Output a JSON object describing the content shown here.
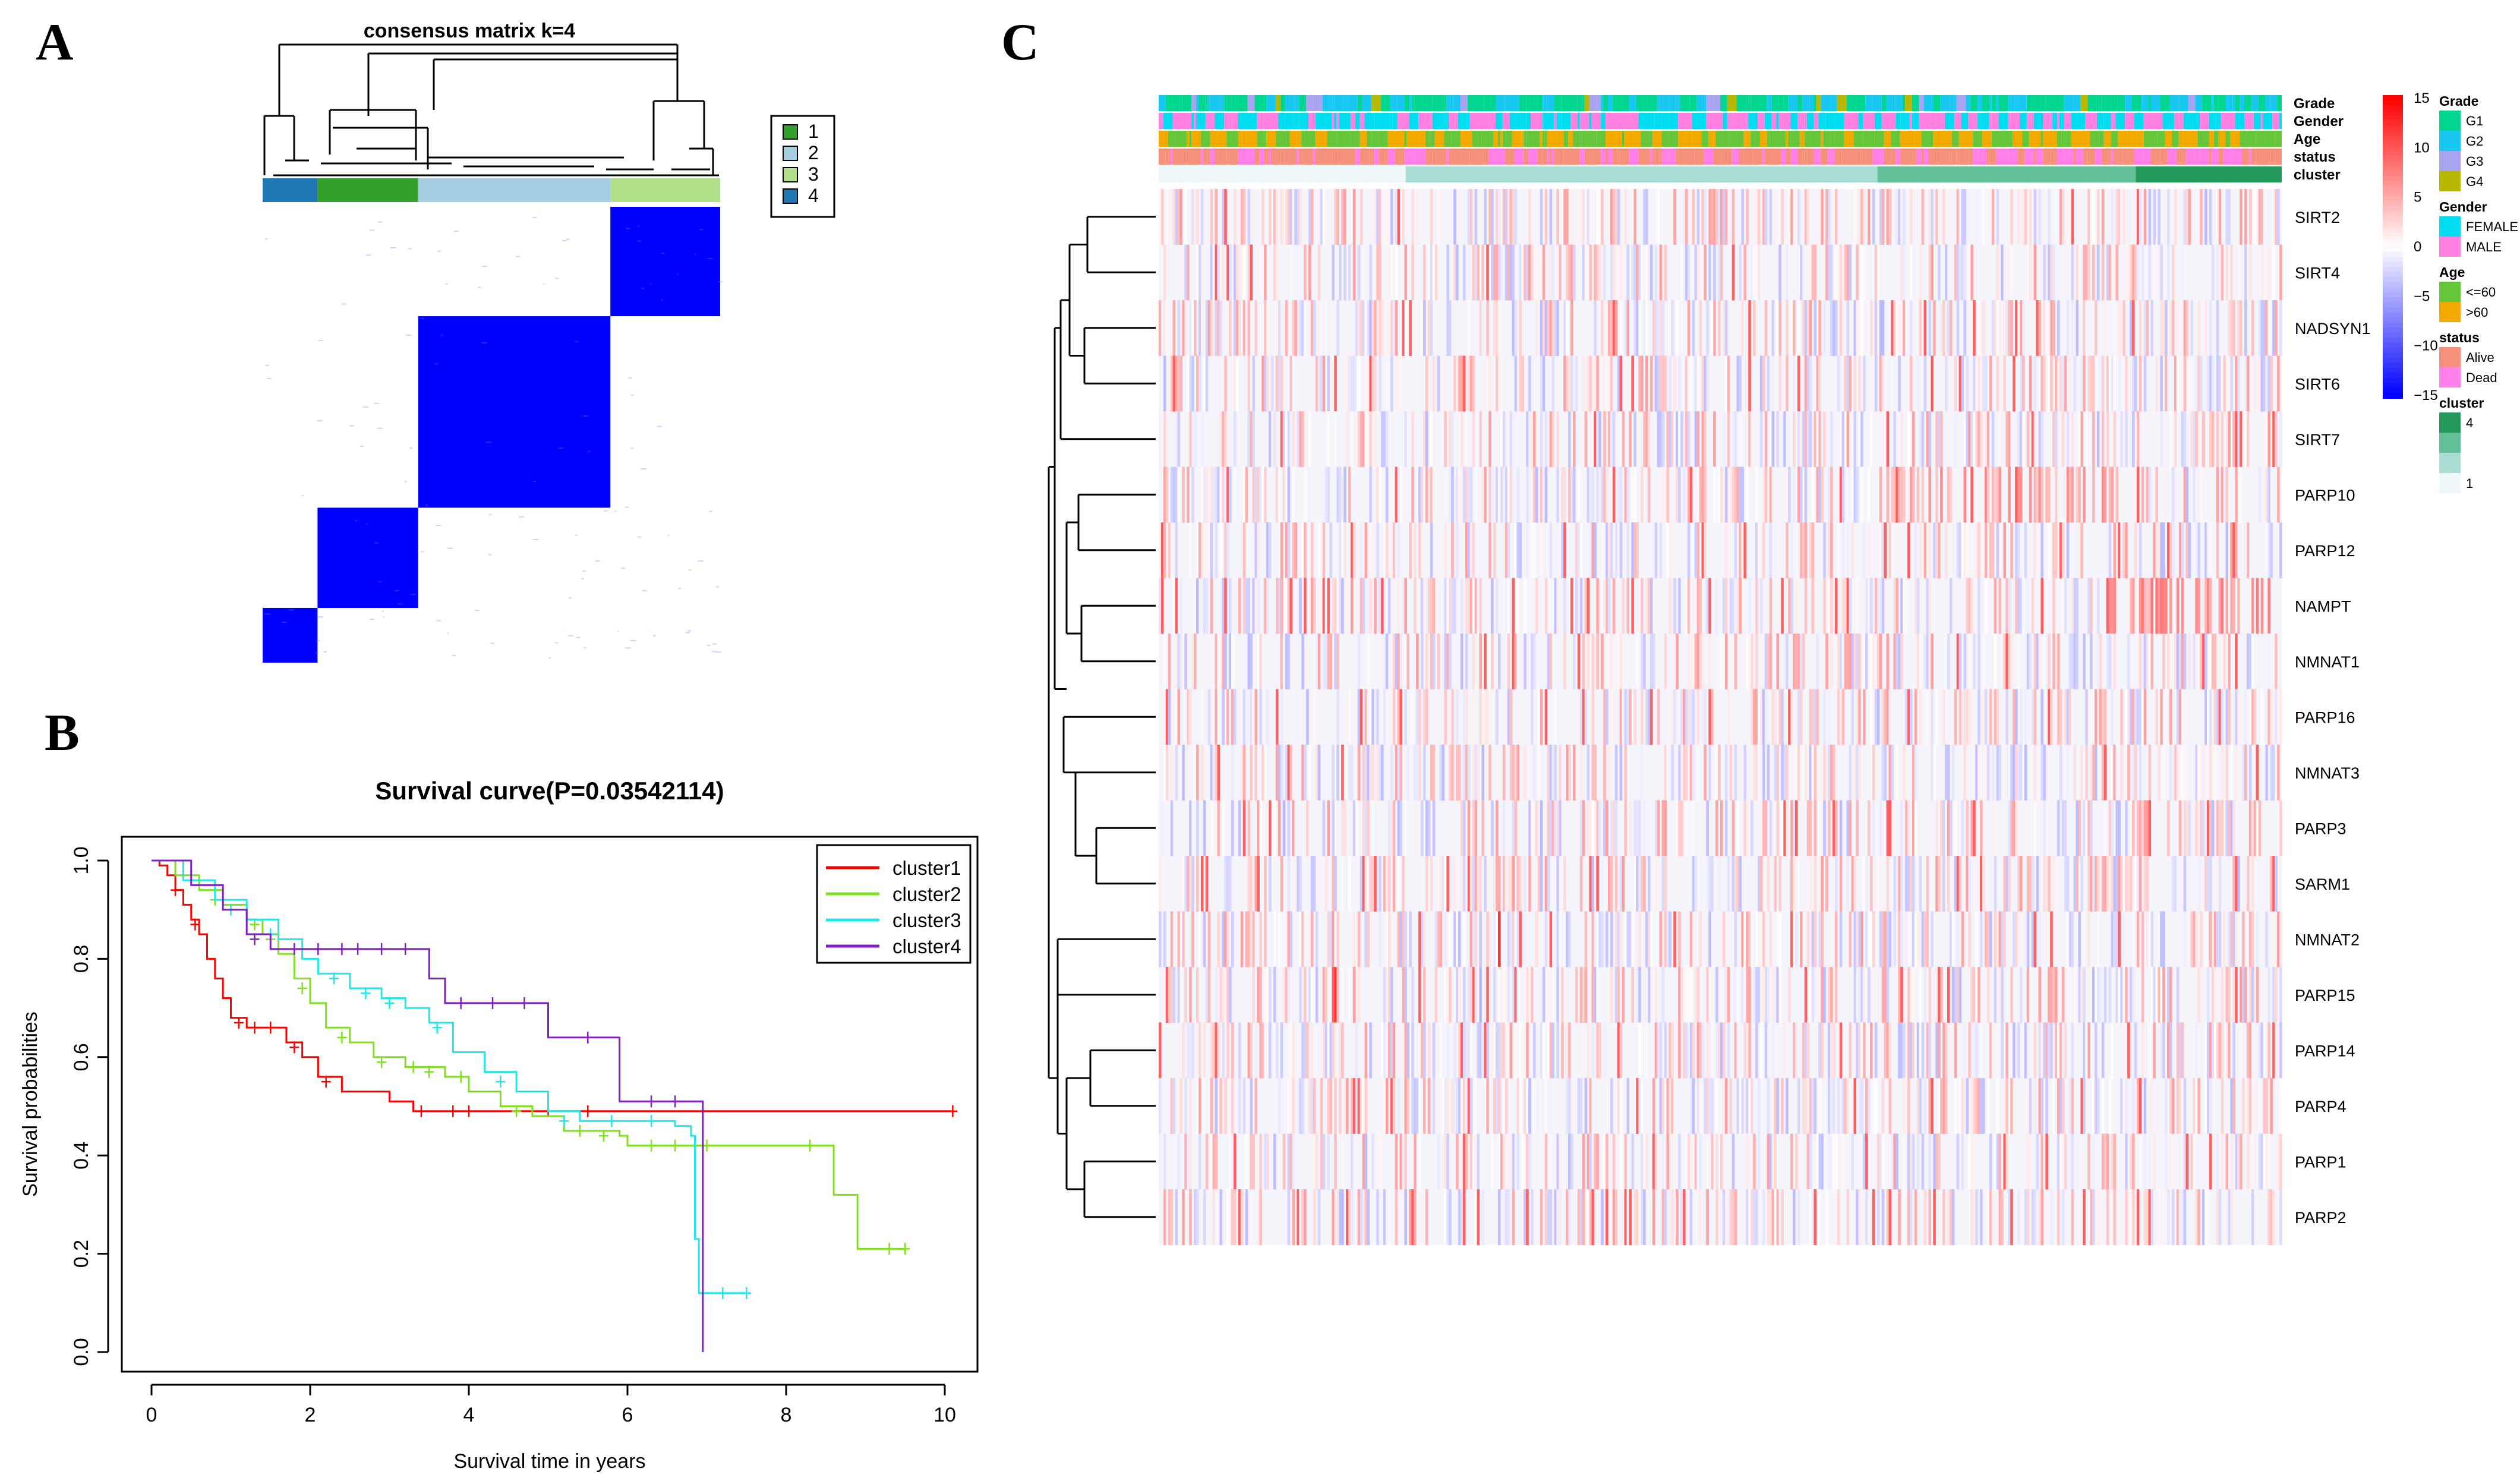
{
  "panels": {
    "A": {
      "letter": "A",
      "title": "consensus matrix k=4",
      "legend": [
        {
          "label": "1",
          "color": "#33a02c"
        },
        {
          "label": "2",
          "color": "#a6cee3"
        },
        {
          "label": "3",
          "color": "#b2df8a"
        },
        {
          "label": "4",
          "color": "#1f78b4"
        }
      ],
      "column_order": [
        "4",
        "1",
        "2",
        "3"
      ],
      "cluster_fraction": [
        0.12,
        0.22,
        0.42,
        0.24
      ],
      "block_color": "#0000ff"
    },
    "B": {
      "letter": "B",
      "title": "Survival curve(P=0.03542114)",
      "xlabel": "Survival time in years",
      "ylabel": "Survival probabilities"
    },
    "C": {
      "letter": "C",
      "annotation_rows": [
        "Grade",
        "Gender",
        "Age",
        "status",
        "cluster"
      ],
      "genes": [
        "SIRT2",
        "SIRT4",
        "NADSYN1",
        "SIRT6",
        "SIRT7",
        "PARP10",
        "PARP12",
        "NAMPT",
        "NMNAT1",
        "PARP16",
        "NMNAT3",
        "PARP3",
        "SARM1",
        "NMNAT2",
        "PARP15",
        "PARP14",
        "PARP4",
        "PARP1",
        "PARP2"
      ],
      "colorbar": {
        "ticks": [
          "15",
          "10",
          "5",
          "0",
          "−5",
          "−10",
          "−15"
        ],
        "high_color": "#ff0000",
        "mid_color": "#ffffff",
        "low_color": "#0000ff"
      },
      "legend_groups": [
        {
          "title": "Grade",
          "items": [
            {
              "label": "G1",
              "color": "#00d68f"
            },
            {
              "label": "G2",
              "color": "#18c8f0"
            },
            {
              "label": "G3",
              "color": "#a9a4f0"
            },
            {
              "label": "G4",
              "color": "#b8b800"
            }
          ]
        },
        {
          "title": "Gender",
          "items": [
            {
              "label": "FEMALE",
              "color": "#00dcf0"
            },
            {
              "label": "MALE",
              "color": "#ff80e0"
            }
          ]
        },
        {
          "title": "Age",
          "items": [
            {
              "label": "<=60",
              "color": "#66c63a"
            },
            {
              "label": ">60",
              "color": "#f2a900"
            }
          ]
        },
        {
          "title": "status",
          "items": [
            {
              "label": "Alive",
              "color": "#f4917b"
            },
            {
              "label": "Dead",
              "color": "#ff80e8"
            }
          ]
        },
        {
          "title": "cluster",
          "items": [
            {
              "label": "4",
              "color": "#24975a"
            },
            {
              "label": "",
              "color": "#62bf97"
            },
            {
              "label": "",
              "color": "#a9dcd2"
            },
            {
              "label": "1",
              "color": "#eef8fb"
            }
          ]
        }
      ]
    }
  },
  "chart_data": [
    {
      "type": "heatmap",
      "title": "consensus matrix k=4",
      "clusters": [
        "1",
        "2",
        "3",
        "4"
      ],
      "value_range": [
        0,
        1
      ]
    },
    {
      "type": "line",
      "title": "Survival curve(P=0.03542114)",
      "xlabel": "Survival time in years",
      "ylabel": "Survival probabilities",
      "xlim": [
        0,
        10
      ],
      "ylim": [
        0,
        1
      ],
      "xticks": [
        0,
        2,
        4,
        6,
        8,
        10
      ],
      "yticks": [
        0.0,
        0.2,
        0.4,
        0.6,
        0.8,
        1.0
      ],
      "legend_position": "top-right",
      "series": [
        {
          "name": "cluster1",
          "color": "#ff0000",
          "steps": [
            [
              0,
              1.0
            ],
            [
              0.1,
              0.99
            ],
            [
              0.2,
              0.97
            ],
            [
              0.3,
              0.94
            ],
            [
              0.4,
              0.91
            ],
            [
              0.5,
              0.88
            ],
            [
              0.6,
              0.85
            ],
            [
              0.7,
              0.8
            ],
            [
              0.8,
              0.76
            ],
            [
              0.9,
              0.72
            ],
            [
              1.0,
              0.68
            ],
            [
              1.2,
              0.66
            ],
            [
              1.7,
              0.63
            ],
            [
              1.9,
              0.6
            ],
            [
              2.1,
              0.56
            ],
            [
              2.4,
              0.53
            ],
            [
              3.0,
              0.51
            ],
            [
              3.3,
              0.49
            ],
            [
              10.1,
              0.49
            ]
          ],
          "censor": [
            [
              0.3,
              0.94
            ],
            [
              0.55,
              0.87
            ],
            [
              1.1,
              0.67
            ],
            [
              1.3,
              0.66
            ],
            [
              1.5,
              0.66
            ],
            [
              1.8,
              0.62
            ],
            [
              2.2,
              0.55
            ],
            [
              3.4,
              0.49
            ],
            [
              3.8,
              0.49
            ],
            [
              4.0,
              0.49
            ],
            [
              5.0,
              0.49
            ],
            [
              5.5,
              0.49
            ],
            [
              10.1,
              0.49
            ]
          ]
        },
        {
          "name": "cluster2",
          "color": "#80e020",
          "steps": [
            [
              0,
              1.0
            ],
            [
              0.3,
              0.97
            ],
            [
              0.6,
              0.94
            ],
            [
              0.9,
              0.91
            ],
            [
              1.2,
              0.88
            ],
            [
              1.4,
              0.85
            ],
            [
              1.6,
              0.81
            ],
            [
              1.8,
              0.76
            ],
            [
              2.0,
              0.71
            ],
            [
              2.2,
              0.66
            ],
            [
              2.5,
              0.63
            ],
            [
              2.8,
              0.6
            ],
            [
              3.2,
              0.58
            ],
            [
              3.7,
              0.56
            ],
            [
              4.0,
              0.53
            ],
            [
              4.4,
              0.5
            ],
            [
              4.8,
              0.48
            ],
            [
              5.2,
              0.45
            ],
            [
              5.9,
              0.44
            ],
            [
              6.0,
              0.42
            ],
            [
              8.5,
              0.42
            ],
            [
              8.6,
              0.32
            ],
            [
              8.9,
              0.21
            ],
            [
              9.5,
              0.21
            ]
          ],
          "censor": [
            [
              0.8,
              0.92
            ],
            [
              1.3,
              0.87
            ],
            [
              1.5,
              0.84
            ],
            [
              1.9,
              0.74
            ],
            [
              2.4,
              0.64
            ],
            [
              2.9,
              0.59
            ],
            [
              3.3,
              0.58
            ],
            [
              3.5,
              0.57
            ],
            [
              3.9,
              0.56
            ],
            [
              4.6,
              0.49
            ],
            [
              5.4,
              0.45
            ],
            [
              5.7,
              0.44
            ],
            [
              6.3,
              0.42
            ],
            [
              6.6,
              0.42
            ],
            [
              7.0,
              0.42
            ],
            [
              8.3,
              0.42
            ],
            [
              9.3,
              0.21
            ],
            [
              9.5,
              0.21
            ]
          ]
        },
        {
          "name": "cluster3",
          "color": "#20e8e8",
          "steps": [
            [
              0,
              1.0
            ],
            [
              0.4,
              0.96
            ],
            [
              0.8,
              0.92
            ],
            [
              1.2,
              0.88
            ],
            [
              1.6,
              0.84
            ],
            [
              1.9,
              0.8
            ],
            [
              2.1,
              0.77
            ],
            [
              2.5,
              0.74
            ],
            [
              2.9,
              0.72
            ],
            [
              3.2,
              0.7
            ],
            [
              3.5,
              0.67
            ],
            [
              3.8,
              0.61
            ],
            [
              4.2,
              0.57
            ],
            [
              4.6,
              0.53
            ],
            [
              5.0,
              0.49
            ],
            [
              5.4,
              0.47
            ],
            [
              6.2,
              0.47
            ],
            [
              6.6,
              0.46
            ],
            [
              6.8,
              0.44
            ],
            [
              6.85,
              0.23
            ],
            [
              6.9,
              0.12
            ],
            [
              7.5,
              0.12
            ]
          ],
          "censor": [
            [
              1.0,
              0.9
            ],
            [
              1.5,
              0.85
            ],
            [
              2.3,
              0.76
            ],
            [
              2.7,
              0.73
            ],
            [
              3.0,
              0.71
            ],
            [
              3.6,
              0.66
            ],
            [
              4.4,
              0.55
            ],
            [
              5.2,
              0.47
            ],
            [
              5.8,
              0.47
            ],
            [
              6.3,
              0.47
            ],
            [
              7.2,
              0.12
            ],
            [
              7.5,
              0.12
            ]
          ]
        },
        {
          "name": "cluster4",
          "color": "#8020c0",
          "steps": [
            [
              0,
              1.0
            ],
            [
              0.5,
              0.95
            ],
            [
              0.9,
              0.9
            ],
            [
              1.2,
              0.85
            ],
            [
              1.5,
              0.82
            ],
            [
              3.3,
              0.82
            ],
            [
              3.5,
              0.76
            ],
            [
              3.7,
              0.71
            ],
            [
              4.9,
              0.71
            ],
            [
              5.0,
              0.64
            ],
            [
              5.7,
              0.64
            ],
            [
              5.9,
              0.51
            ],
            [
              6.9,
              0.51
            ],
            [
              6.95,
              0.0
            ]
          ],
          "censor": [
            [
              1.3,
              0.84
            ],
            [
              1.8,
              0.82
            ],
            [
              2.1,
              0.82
            ],
            [
              2.4,
              0.82
            ],
            [
              2.6,
              0.82
            ],
            [
              2.9,
              0.82
            ],
            [
              3.2,
              0.82
            ],
            [
              3.9,
              0.71
            ],
            [
              4.3,
              0.71
            ],
            [
              4.7,
              0.71
            ],
            [
              5.5,
              0.64
            ],
            [
              6.3,
              0.51
            ],
            [
              6.6,
              0.51
            ]
          ]
        }
      ]
    },
    {
      "type": "heatmap",
      "rows": [
        "SIRT2",
        "SIRT4",
        "NADSYN1",
        "SIRT6",
        "SIRT7",
        "PARP10",
        "PARP12",
        "NAMPT",
        "NMNAT1",
        "PARP16",
        "NMNAT3",
        "PARP3",
        "SARM1",
        "NMNAT2",
        "PARP15",
        "PARP14",
        "PARP4",
        "PARP1",
        "PARP2"
      ],
      "value_range": [
        -15,
        15
      ],
      "annotations": [
        "Grade",
        "Gender",
        "Age",
        "status",
        "cluster"
      ],
      "cluster_split": [
        0.22,
        0.42,
        0.23,
        0.13
      ]
    }
  ]
}
